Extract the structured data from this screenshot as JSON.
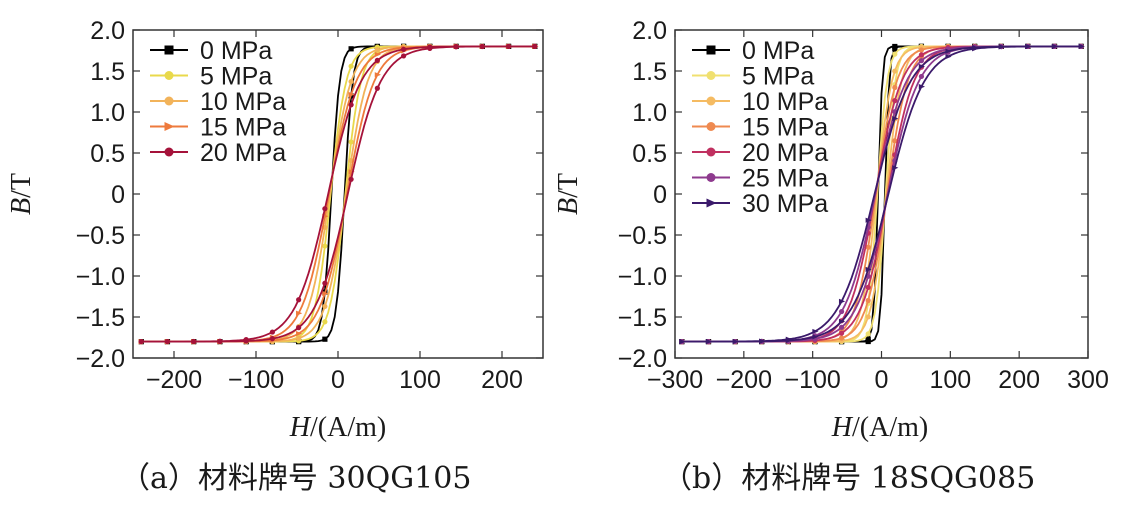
{
  "chart_data": [
    {
      "type": "line",
      "panel": "a",
      "caption": "（a）材料牌号 30QG105",
      "xlabel_italic": "H",
      "xlabel_rest": "/(A/m)",
      "ylabel_italic": "B",
      "ylabel_rest": "/T",
      "xlim": [
        -250,
        250
      ],
      "ylim": [
        -2.0,
        2.0
      ],
      "xticks": [
        -200,
        -100,
        0,
        100,
        200
      ],
      "yticks": [
        -2.0,
        -1.5,
        -1.0,
        -0.5,
        0,
        0.5,
        1.0,
        1.5,
        2.0
      ],
      "xtick_labels": [
        "−200",
        "−100",
        "0",
        "100",
        "200"
      ],
      "ytick_labels": [
        "−2.0",
        "−1.5",
        "−1.0",
        "−0.5",
        "0",
        "0.5",
        "1.0",
        "1.5",
        "2.0"
      ],
      "bsat": 1.8,
      "hmax": 240,
      "series": [
        {
          "name": "0 MPa",
          "color": "#000000",
          "marker": "square",
          "hc": 8,
          "scale": 10
        },
        {
          "name": "5 MPa",
          "color": "#e9d94b",
          "marker": "circle",
          "hc": 9,
          "scale": 19
        },
        {
          "name": "10 MPa",
          "color": "#f2b35a",
          "marker": "circle",
          "hc": 10,
          "scale": 26
        },
        {
          "name": "15 MPa",
          "color": "#ee7a3c",
          "marker": "triangle",
          "hc": 11,
          "scale": 33
        },
        {
          "name": "20 MPa",
          "color": "#a5123a",
          "marker": "circle",
          "hc": 12,
          "scale": 40
        }
      ]
    },
    {
      "type": "line",
      "panel": "b",
      "caption": "（b）材料牌号 18SQG085",
      "xlabel_italic": "H",
      "xlabel_rest": "/(A/m)",
      "ylabel_italic": "B",
      "ylabel_rest": "/T",
      "xlim": [
        -300,
        300
      ],
      "ylim": [
        -2.0,
        2.0
      ],
      "xticks": [
        -300,
        -200,
        -100,
        0,
        100,
        200,
        300
      ],
      "yticks": [
        -2.0,
        -1.5,
        -1.0,
        -0.5,
        0,
        0.5,
        1.0,
        1.5,
        2.0
      ],
      "xtick_labels": [
        "−300",
        "−200",
        "−100",
        "0",
        "100",
        "200",
        "300"
      ],
      "ytick_labels": [
        "−2.0",
        "−1.5",
        "−1.0",
        "−0.5",
        "0",
        "0.5",
        "1.0",
        "1.5",
        "2.0"
      ],
      "bsat": 1.8,
      "hmax": 290,
      "series": [
        {
          "name": "0 MPa",
          "color": "#000000",
          "marker": "square",
          "hc": 5,
          "scale": 6
        },
        {
          "name": "5 MPa",
          "color": "#f0e070",
          "marker": "circle",
          "hc": 6,
          "scale": 14
        },
        {
          "name": "10 MPa",
          "color": "#f5bb62",
          "marker": "circle",
          "hc": 7,
          "scale": 22
        },
        {
          "name": "15 MPa",
          "color": "#ef8a50",
          "marker": "circle",
          "hc": 8,
          "scale": 30
        },
        {
          "name": "20 MPa",
          "color": "#c03060",
          "marker": "circle",
          "hc": 9,
          "scale": 38
        },
        {
          "name": "25 MPa",
          "color": "#8e3a8e",
          "marker": "circle",
          "hc": 9,
          "scale": 45
        },
        {
          "name": "30 MPa",
          "color": "#3b1a6b",
          "marker": "triangle",
          "hc": 10,
          "scale": 52
        }
      ]
    }
  ]
}
